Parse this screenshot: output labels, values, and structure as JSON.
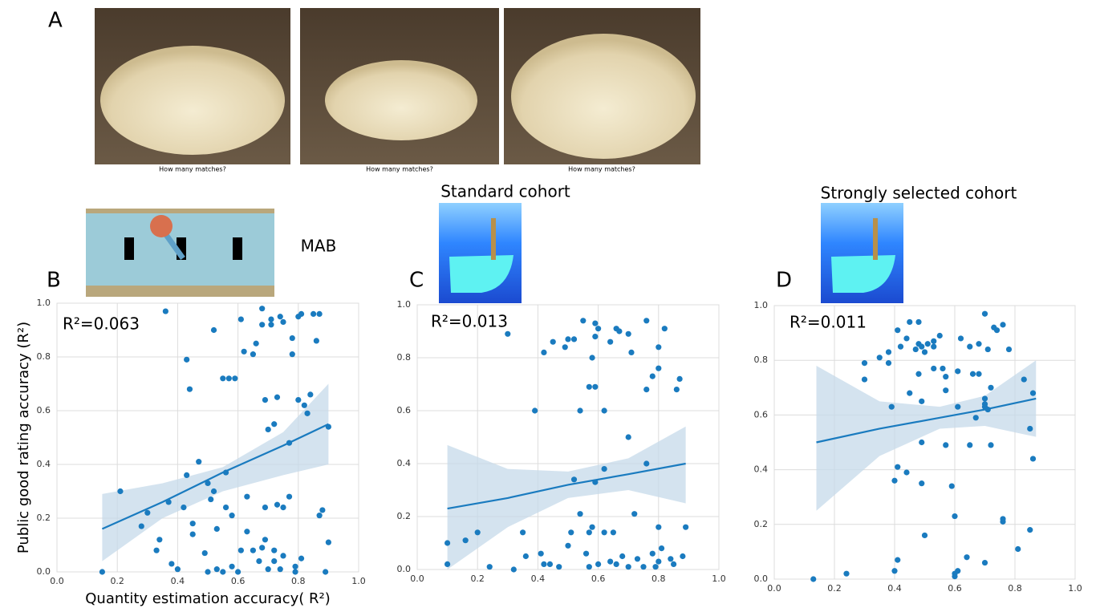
{
  "panel_a": {
    "label": "A",
    "captions": [
      "How many matches?",
      "How many matches?",
      "How many matches?"
    ]
  },
  "chart_data": [
    {
      "type": "scatter",
      "label": "B",
      "title": "MAB",
      "annotation": "R²=0.063",
      "x_label": "Quantity estimation accuracy( R²)",
      "y_label": "Public good rating accuracy (R²)",
      "xlim": [
        0,
        1
      ],
      "ylim": [
        0,
        1
      ],
      "xticks": [
        {
          "value": 0,
          "label": "0.0"
        },
        0.2,
        0.4,
        0.6,
        0.8,
        {
          "value": 1,
          "label": "1.0"
        }
      ],
      "yticks": [
        {
          "value": 0,
          "label": "0.0"
        },
        0.2,
        0.4,
        0.6,
        0.8,
        {
          "value": 1,
          "label": "1.0"
        }
      ],
      "grid": true,
      "color": "#1a7bbf",
      "x": [
        0.36,
        0.43,
        0.44,
        0.52,
        0.61,
        0.55,
        0.57,
        0.59,
        0.62,
        0.65,
        0.66,
        0.68,
        0.68,
        0.71,
        0.71,
        0.74,
        0.75,
        0.78,
        0.78,
        0.8,
        0.81,
        0.85,
        0.87,
        0.86,
        0.69,
        0.73,
        0.8,
        0.82,
        0.84,
        0.83,
        0.7,
        0.72,
        0.77,
        0.9,
        0.21,
        0.3,
        0.28,
        0.34,
        0.33,
        0.37,
        0.42,
        0.47,
        0.43,
        0.45,
        0.45,
        0.5,
        0.52,
        0.51,
        0.56,
        0.56,
        0.58,
        0.53,
        0.63,
        0.63,
        0.61,
        0.65,
        0.69,
        0.73,
        0.75,
        0.77,
        0.69,
        0.72,
        0.72,
        0.75,
        0.79,
        0.81,
        0.88,
        0.87,
        0.9,
        0.89,
        0.15,
        0.38,
        0.4,
        0.49,
        0.5,
        0.53,
        0.55,
        0.58,
        0.6,
        0.67,
        0.7,
        0.74,
        0.79,
        0.68
      ],
      "values": [
        0.97,
        0.79,
        0.68,
        0.9,
        0.94,
        0.72,
        0.72,
        0.72,
        0.82,
        0.81,
        0.85,
        0.98,
        0.92,
        0.94,
        0.92,
        0.95,
        0.93,
        0.87,
        0.81,
        0.95,
        0.96,
        0.96,
        0.96,
        0.86,
        0.64,
        0.65,
        0.64,
        0.62,
        0.66,
        0.59,
        0.53,
        0.55,
        0.48,
        0.54,
        0.3,
        0.22,
        0.17,
        0.12,
        0.08,
        0.26,
        0.24,
        0.41,
        0.36,
        0.18,
        0.14,
        0.33,
        0.3,
        0.27,
        0.37,
        0.24,
        0.21,
        0.16,
        0.28,
        0.15,
        0.08,
        0.08,
        0.24,
        0.25,
        0.24,
        0.28,
        0.12,
        0.08,
        0.04,
        0.06,
        0.02,
        0.05,
        0.23,
        0.21,
        0.11,
        0.0,
        0.0,
        0.03,
        0.01,
        0.07,
        0.0,
        0.01,
        0.0,
        0.02,
        0.0,
        0.04,
        0.01,
        0.01,
        0.0,
        0.09
      ],
      "fit": {
        "x": [
          0.15,
          0.35,
          0.55,
          0.75,
          0.9
        ],
        "values": [
          0.16,
          0.26,
          0.37,
          0.47,
          0.55
        ],
        "lower": [
          0.04,
          0.2,
          0.3,
          0.36,
          0.4
        ],
        "upper": [
          0.29,
          0.33,
          0.39,
          0.52,
          0.7
        ]
      }
    },
    {
      "type": "scatter",
      "label": "C",
      "title": "Standard cohort",
      "annotation": "R²=0.013",
      "xlim": [
        0,
        1
      ],
      "ylim": [
        0,
        1
      ],
      "xticks": [
        {
          "value": 0,
          "label": "0.0"
        },
        0.2,
        0.4,
        0.6,
        0.8,
        {
          "value": 1,
          "label": "1.0"
        }
      ],
      "yticks": [
        {
          "value": 0,
          "label": "0.0"
        },
        0.2,
        0.4,
        0.6,
        0.8,
        {
          "value": 1,
          "label": "1.0"
        }
      ],
      "grid": true,
      "color": "#1a7bbf",
      "x": [
        0.3,
        0.1,
        0.1,
        0.16,
        0.2,
        0.24,
        0.32,
        0.35,
        0.36,
        0.41,
        0.42,
        0.44,
        0.47,
        0.39,
        0.42,
        0.45,
        0.5,
        0.49,
        0.52,
        0.55,
        0.59,
        0.6,
        0.59,
        0.64,
        0.66,
        0.67,
        0.7,
        0.71,
        0.76,
        0.82,
        0.8,
        0.8,
        0.78,
        0.76,
        0.87,
        0.86,
        0.58,
        0.57,
        0.59,
        0.54,
        0.62,
        0.7,
        0.52,
        0.59,
        0.62,
        0.76,
        0.54,
        0.58,
        0.57,
        0.62,
        0.65,
        0.51,
        0.72,
        0.8,
        0.89,
        0.5,
        0.56,
        0.6,
        0.64,
        0.68,
        0.73,
        0.78,
        0.81,
        0.84,
        0.88,
        0.8,
        0.75,
        0.66,
        0.7,
        0.57,
        0.79,
        0.85
      ],
      "values": [
        0.89,
        0.02,
        0.1,
        0.11,
        0.14,
        0.01,
        0.0,
        0.14,
        0.05,
        0.06,
        0.02,
        0.02,
        0.01,
        0.6,
        0.82,
        0.86,
        0.87,
        0.84,
        0.87,
        0.94,
        0.93,
        0.91,
        0.88,
        0.86,
        0.91,
        0.9,
        0.89,
        0.82,
        0.94,
        0.91,
        0.84,
        0.76,
        0.73,
        0.68,
        0.72,
        0.68,
        0.8,
        0.69,
        0.69,
        0.6,
        0.6,
        0.5,
        0.34,
        0.33,
        0.38,
        0.4,
        0.21,
        0.16,
        0.14,
        0.14,
        0.14,
        0.14,
        0.21,
        0.16,
        0.16,
        0.09,
        0.06,
        0.02,
        0.03,
        0.05,
        0.04,
        0.06,
        0.08,
        0.04,
        0.05,
        0.03,
        0.01,
        0.02,
        0.01,
        0.01,
        0.01,
        0.02
      ],
      "fit": {
        "x": [
          0.1,
          0.3,
          0.5,
          0.7,
          0.89
        ],
        "values": [
          0.23,
          0.27,
          0.32,
          0.36,
          0.4
        ],
        "lower": [
          0,
          0.16,
          0.27,
          0.3,
          0.25
        ],
        "upper": [
          0.47,
          0.38,
          0.37,
          0.42,
          0.54
        ]
      }
    },
    {
      "type": "scatter",
      "label": "D",
      "title": "Strongly selected cohort",
      "annotation": "R²=0.011",
      "xlim": [
        0,
        1
      ],
      "ylim": [
        0,
        1
      ],
      "xticks": [
        {
          "value": 0,
          "label": "0.0"
        },
        0.2,
        0.4,
        0.6,
        0.8,
        {
          "value": 1,
          "label": "1.0"
        }
      ],
      "yticks": [
        {
          "value": 0,
          "label": "0.0"
        },
        0.2,
        0.4,
        0.6,
        0.8,
        {
          "value": 1,
          "label": "1.0"
        }
      ],
      "grid": true,
      "color": "#1a7bbf",
      "x": [
        0.13,
        0.24,
        0.3,
        0.3,
        0.39,
        0.4,
        0.41,
        0.44,
        0.4,
        0.35,
        0.38,
        0.38,
        0.41,
        0.42,
        0.44,
        0.45,
        0.47,
        0.48,
        0.48,
        0.49,
        0.5,
        0.51,
        0.53,
        0.53,
        0.55,
        0.53,
        0.48,
        0.56,
        0.57,
        0.62,
        0.65,
        0.68,
        0.71,
        0.74,
        0.76,
        0.78,
        0.73,
        0.7,
        0.61,
        0.66,
        0.68,
        0.45,
        0.49,
        0.57,
        0.61,
        0.67,
        0.7,
        0.71,
        0.72,
        0.7,
        0.7,
        0.83,
        0.86,
        0.49,
        0.57,
        0.65,
        0.72,
        0.85,
        0.49,
        0.59,
        0.5,
        0.6,
        0.76,
        0.76,
        0.86,
        0.85,
        0.41,
        0.64,
        0.7,
        0.81,
        0.6,
        0.6,
        0.61
      ],
      "values": [
        0.0,
        0.02,
        0.79,
        0.73,
        0.63,
        0.36,
        0.41,
        0.39,
        0.03,
        0.81,
        0.79,
        0.83,
        0.91,
        0.85,
        0.88,
        0.94,
        0.84,
        0.86,
        0.94,
        0.85,
        0.83,
        0.86,
        0.85,
        0.87,
        0.89,
        0.77,
        0.75,
        0.77,
        0.74,
        0.88,
        0.85,
        0.86,
        0.84,
        0.91,
        0.93,
        0.84,
        0.92,
        0.97,
        0.76,
        0.75,
        0.75,
        0.68,
        0.65,
        0.69,
        0.63,
        0.59,
        0.63,
        0.62,
        0.7,
        0.66,
        0.64,
        0.73,
        0.68,
        0.5,
        0.49,
        0.49,
        0.49,
        0.55,
        0.35,
        0.34,
        0.16,
        0.23,
        0.22,
        0.21,
        0.44,
        0.18,
        0.07,
        0.08,
        0.06,
        0.11,
        0.02,
        0.01,
        0.03
      ],
      "fit": {
        "x": [
          0.14,
          0.35,
          0.55,
          0.7,
          0.87
        ],
        "values": [
          0.5,
          0.55,
          0.59,
          0.62,
          0.66
        ],
        "lower": [
          0.25,
          0.45,
          0.55,
          0.56,
          0.52
        ],
        "upper": [
          0.78,
          0.65,
          0.63,
          0.67,
          0.8
        ]
      }
    }
  ]
}
